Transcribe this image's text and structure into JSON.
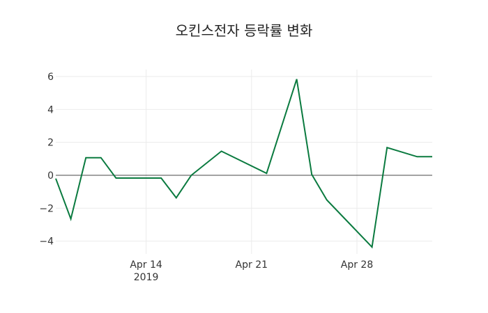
{
  "chart_data": {
    "type": "line",
    "title": "오킨스전자 등락률 변화",
    "xlabel": "",
    "ylabel": "",
    "x": [
      "2019-04-08",
      "2019-04-09",
      "2019-04-10",
      "2019-04-11",
      "2019-04-12",
      "2019-04-15",
      "2019-04-16",
      "2019-04-17",
      "2019-04-19",
      "2019-04-22",
      "2019-04-24",
      "2019-04-25",
      "2019-04-26",
      "2019-04-29",
      "2019-04-30",
      "2019-05-02",
      "2019-05-03"
    ],
    "series": [
      {
        "name": "등락률",
        "color": "#0a7a3f",
        "values": [
          -0.2,
          -2.65,
          1.07,
          1.07,
          -0.17,
          -0.17,
          -1.37,
          0.0,
          1.46,
          0.12,
          5.84,
          0.05,
          -1.5,
          -4.36,
          1.68,
          1.13,
          1.13
        ]
      }
    ],
    "xlim": [
      "2019-04-08",
      "2019-05-03"
    ],
    "ylim": [
      -4.8,
      6.4
    ],
    "x_ticks": [
      {
        "date": "2019-04-14",
        "label": "Apr 14",
        "sublabel": "2019"
      },
      {
        "date": "2019-04-21",
        "label": "Apr 21",
        "sublabel": ""
      },
      {
        "date": "2019-04-28",
        "label": "Apr 28",
        "sublabel": ""
      }
    ],
    "y_ticks": [
      6,
      4,
      2,
      0,
      -2,
      -4
    ],
    "y_tick_labels": [
      "6",
      "4",
      "2",
      "0",
      "−2",
      "−4"
    ],
    "grid": true,
    "zero_line": true,
    "legend": "none"
  }
}
